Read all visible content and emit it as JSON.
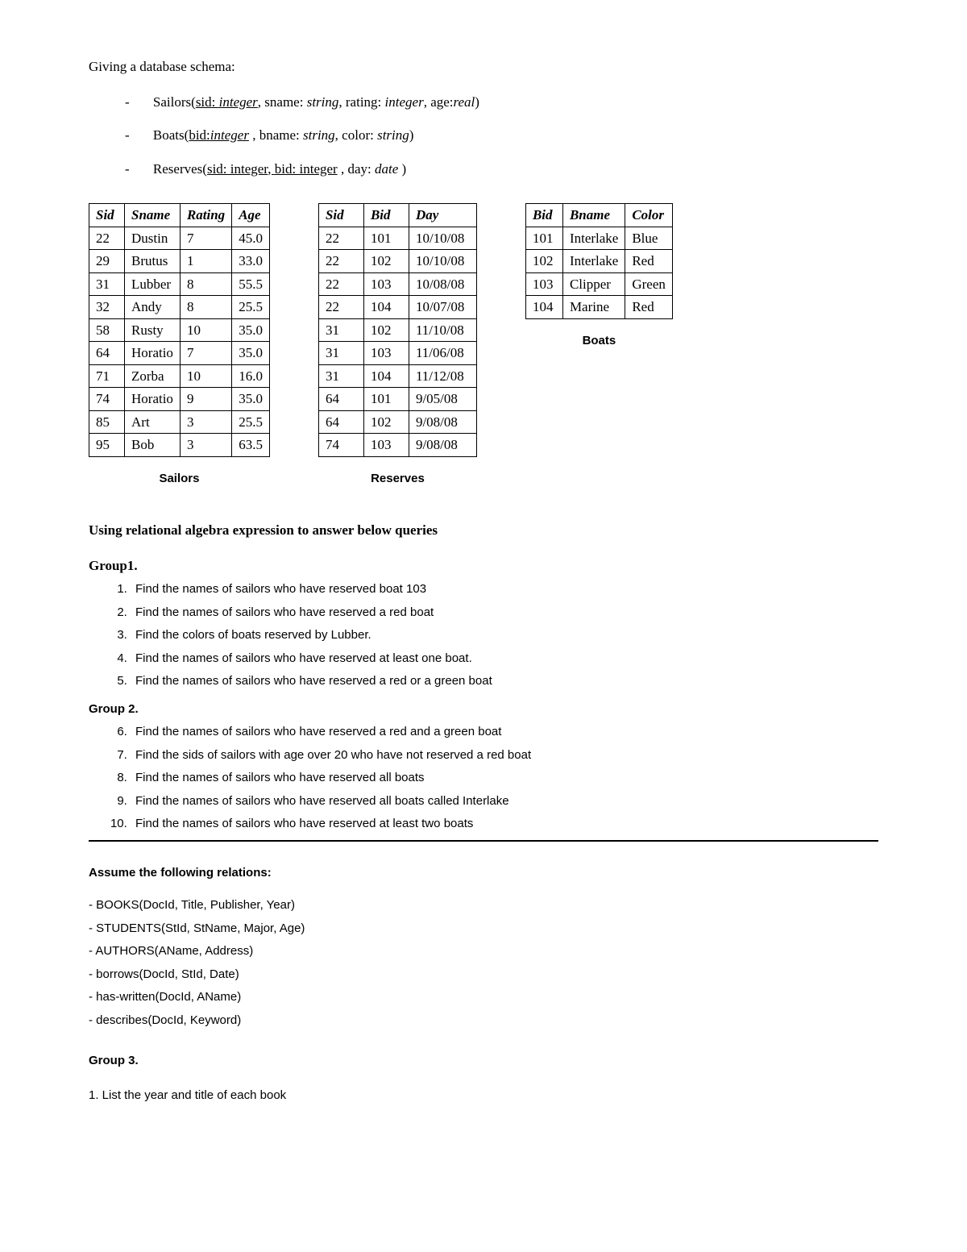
{
  "intro": "Giving a database schema:",
  "schema": {
    "sailors": {
      "prefix": "Sailors(",
      "key": "sid",
      "keytype": "integer",
      "rest": ", sname: string, rating: integer, age:real)"
    },
    "boats": {
      "prefix": "Boats(",
      "key": "bid",
      "keytype": "integer",
      "rest": " , bname: string, color: string)"
    },
    "reserves": {
      "prefix": "Reserves(",
      "key1": "sid: integer",
      "key2": "bid: integer",
      "rest": " , day: date )"
    }
  },
  "tables": {
    "sailors": {
      "caption": "Sailors",
      "columns": [
        "Sid",
        "Sname",
        "Rating",
        "Age"
      ],
      "rows": [
        [
          "22",
          "Dustin",
          "7",
          "45.0"
        ],
        [
          "29",
          "Brutus",
          "1",
          "33.0"
        ],
        [
          "31",
          "Lubber",
          "8",
          "55.5"
        ],
        [
          "32",
          "Andy",
          "8",
          "25.5"
        ],
        [
          "58",
          "Rusty",
          "10",
          "35.0"
        ],
        [
          "64",
          "Horatio",
          "7",
          "35.0"
        ],
        [
          "71",
          "Zorba",
          "10",
          "16.0"
        ],
        [
          "74",
          "Horatio",
          "9",
          "35.0"
        ],
        [
          "85",
          "Art",
          "3",
          "25.5"
        ],
        [
          "95",
          "Bob",
          "3",
          "63.5"
        ]
      ]
    },
    "reserves": {
      "caption": "Reserves",
      "columns": [
        "Sid",
        "Bid",
        "Day"
      ],
      "rows": [
        [
          "22",
          "101",
          "10/10/08"
        ],
        [
          "22",
          "102",
          "10/10/08"
        ],
        [
          "22",
          "103",
          "10/08/08"
        ],
        [
          "22",
          "104",
          "10/07/08"
        ],
        [
          "31",
          "102",
          "11/10/08"
        ],
        [
          "31",
          "103",
          "11/06/08"
        ],
        [
          "31",
          "104",
          "11/12/08"
        ],
        [
          "64",
          "101",
          "9/05/08"
        ],
        [
          "64",
          "102",
          "9/08/08"
        ],
        [
          "74",
          "103",
          "9/08/08"
        ]
      ]
    },
    "boats": {
      "caption": "Boats",
      "columns": [
        "Bid",
        "Bname",
        "Color"
      ],
      "rows": [
        [
          "101",
          "Interlake",
          "Blue"
        ],
        [
          "102",
          "Interlake",
          "Red"
        ],
        [
          "103",
          "Clipper",
          "Green"
        ],
        [
          "104",
          "Marine",
          "Red"
        ]
      ]
    }
  },
  "queries": {
    "title": "Using relational algebra expression to answer below queries",
    "group1_label": "Group1.",
    "group1": [
      "Find the names of sailors who have reserved boat 103",
      "Find the names of sailors who have reserved a red boat",
      "Find the colors of boats reserved by Lubber.",
      "Find the names of sailors who have reserved at least one boat.",
      "Find the names of sailors who have reserved a red or a green boat"
    ],
    "group2_label": "Group 2.",
    "group2": [
      "Find the names of sailors who have reserved a red and a green boat",
      "Find the sids of sailors with age over 20 who have not reserved a red boat",
      "Find the names of sailors who have reserved all boats",
      "Find the names of sailors who have reserved all boats called Interlake",
      "Find the names of sailors who have reserved at least two boats"
    ]
  },
  "relations": {
    "title": "Assume the following relations:",
    "items": [
      "- BOOKS(DocId, Title, Publisher, Year)",
      "- STUDENTS(StId, StName, Major, Age)",
      "- AUTHORS(AName, Address)",
      "- borrows(DocId, StId, Date)",
      "- has-written(DocId, AName)",
      "- describes(DocId, Keyword)"
    ]
  },
  "group3": {
    "label": "Group 3.",
    "items": [
      "1. List the year and title of each book"
    ]
  }
}
